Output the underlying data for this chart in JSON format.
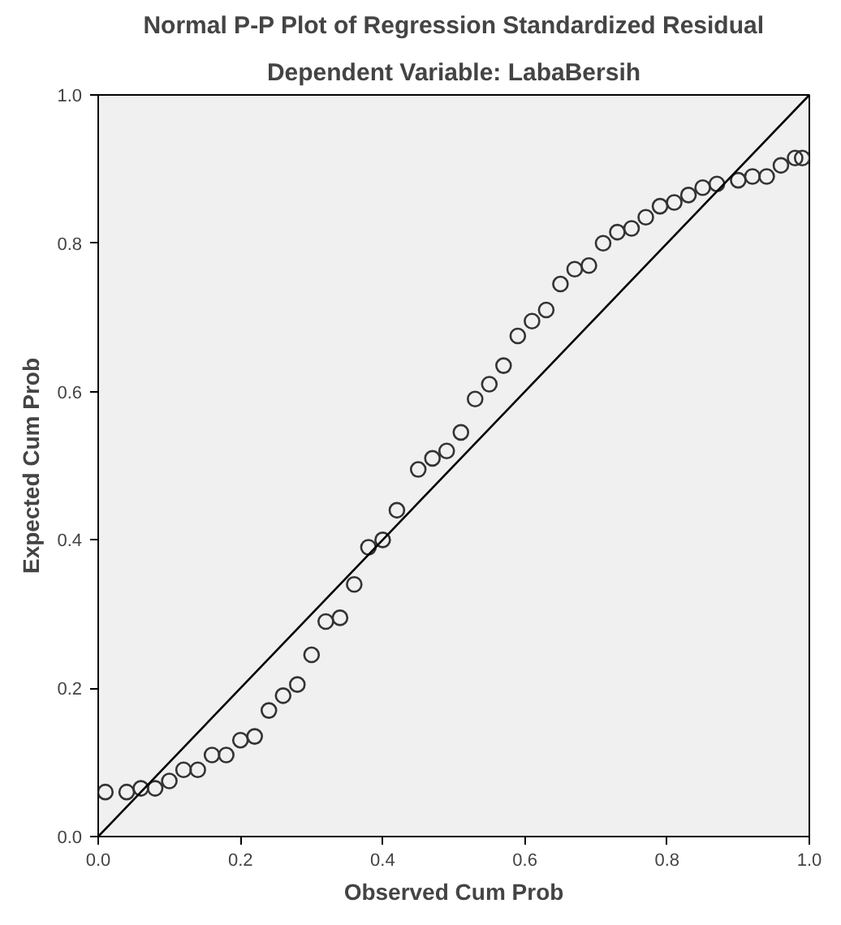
{
  "chart_data": {
    "type": "scatter",
    "title": "Normal P-P Plot of Regression Standardized Residual",
    "subtitle": "Dependent Variable: LabaBersih",
    "xlabel": "Observed Cum Prob",
    "ylabel": "Expected Cum Prob",
    "grid": false,
    "xlim": [
      0,
      1
    ],
    "ylim": [
      0,
      1
    ],
    "xticks": [
      {
        "value": 0,
        "label": "0.0"
      },
      {
        "value": 0.2,
        "label": "0.2"
      },
      {
        "value": 0.4,
        "label": "0.4"
      },
      {
        "value": 0.6,
        "label": "0.6"
      },
      {
        "value": 0.8,
        "label": "0.8"
      },
      {
        "value": 1,
        "label": "1.0"
      }
    ],
    "yticks": [
      {
        "value": 0,
        "label": "0.0"
      },
      {
        "value": 0.2,
        "label": "0.2"
      },
      {
        "value": 0.4,
        "label": "0.4"
      },
      {
        "value": 0.6,
        "label": "0.6"
      },
      {
        "value": 0.8,
        "label": "0.8"
      },
      {
        "value": 1,
        "label": "1.0"
      }
    ],
    "series": [
      {
        "marker": "circle",
        "color": "#333333",
        "x": [
          0.01,
          0.04,
          0.06,
          0.08,
          0.1,
          0.12,
          0.14,
          0.16,
          0.18,
          0.2,
          0.22,
          0.24,
          0.26,
          0.28,
          0.3,
          0.32,
          0.34,
          0.36,
          0.38,
          0.4,
          0.42,
          0.45,
          0.47,
          0.49,
          0.51,
          0.53,
          0.55,
          0.57,
          0.59,
          0.61,
          0.63,
          0.65,
          0.67,
          0.69,
          0.71,
          0.73,
          0.75,
          0.77,
          0.79,
          0.81,
          0.83,
          0.85,
          0.87,
          0.9,
          0.92,
          0.94,
          0.96,
          0.98,
          0.99
        ],
        "values": [
          0.06,
          0.06,
          0.065,
          0.065,
          0.075,
          0.09,
          0.09,
          0.11,
          0.11,
          0.13,
          0.135,
          0.17,
          0.19,
          0.205,
          0.245,
          0.29,
          0.295,
          0.34,
          0.39,
          0.4,
          0.44,
          0.495,
          0.51,
          0.52,
          0.545,
          0.59,
          0.61,
          0.635,
          0.675,
          0.695,
          0.71,
          0.745,
          0.765,
          0.77,
          0.8,
          0.815,
          0.82,
          0.835,
          0.85,
          0.855,
          0.865,
          0.875,
          0.88,
          0.885,
          0.89,
          0.89,
          0.905,
          0.915,
          0.915
        ]
      },
      {
        "type": "line",
        "color": "#000000",
        "x": [
          0,
          1
        ],
        "values": [
          0,
          1
        ]
      }
    ]
  }
}
